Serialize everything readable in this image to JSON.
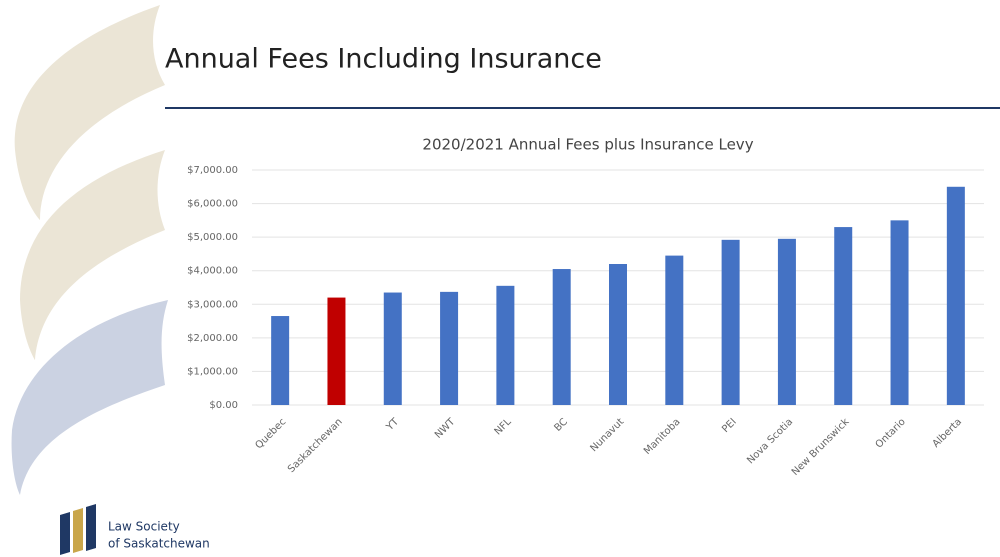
{
  "header": {
    "title": "Annual Fees Including Insurance"
  },
  "chart_data": {
    "type": "bar",
    "title": "2020/2021 Annual Fees plus Insurance Levy",
    "categories": [
      "Quebec",
      "Saskatchewan",
      "YT",
      "NWT",
      "NFL",
      "BC",
      "Nunavut",
      "Manitoba",
      "PEI",
      "Nova Scotia",
      "New Brunswick",
      "Ontario",
      "Alberta"
    ],
    "values": [
      2650,
      3200,
      3350,
      3370,
      3550,
      4050,
      4200,
      4450,
      4920,
      4950,
      5300,
      5500,
      6500
    ],
    "colors": [
      "#4472c4",
      "#c00000",
      "#4472c4",
      "#4472c4",
      "#4472c4",
      "#4472c4",
      "#4472c4",
      "#4472c4",
      "#4472c4",
      "#4472c4",
      "#4472c4",
      "#4472c4",
      "#4472c4"
    ],
    "ylim": [
      0,
      7000
    ],
    "yticks": [
      {
        "value": 0,
        "label": "$0.00"
      },
      {
        "value": 1000,
        "label": "$1,000.00"
      },
      {
        "value": 2000,
        "label": "$2,000.00"
      },
      {
        "value": 3000,
        "label": "$3,000.00"
      },
      {
        "value": 4000,
        "label": "$4,000.00"
      },
      {
        "value": 5000,
        "label": "$5,000.00"
      },
      {
        "value": 6000,
        "label": "$6,000.00"
      },
      {
        "value": 7000,
        "label": "$7,000.00"
      }
    ],
    "grid": true
  },
  "logo": {
    "line1": "Law Society",
    "line2": "of Saskatchewan"
  }
}
